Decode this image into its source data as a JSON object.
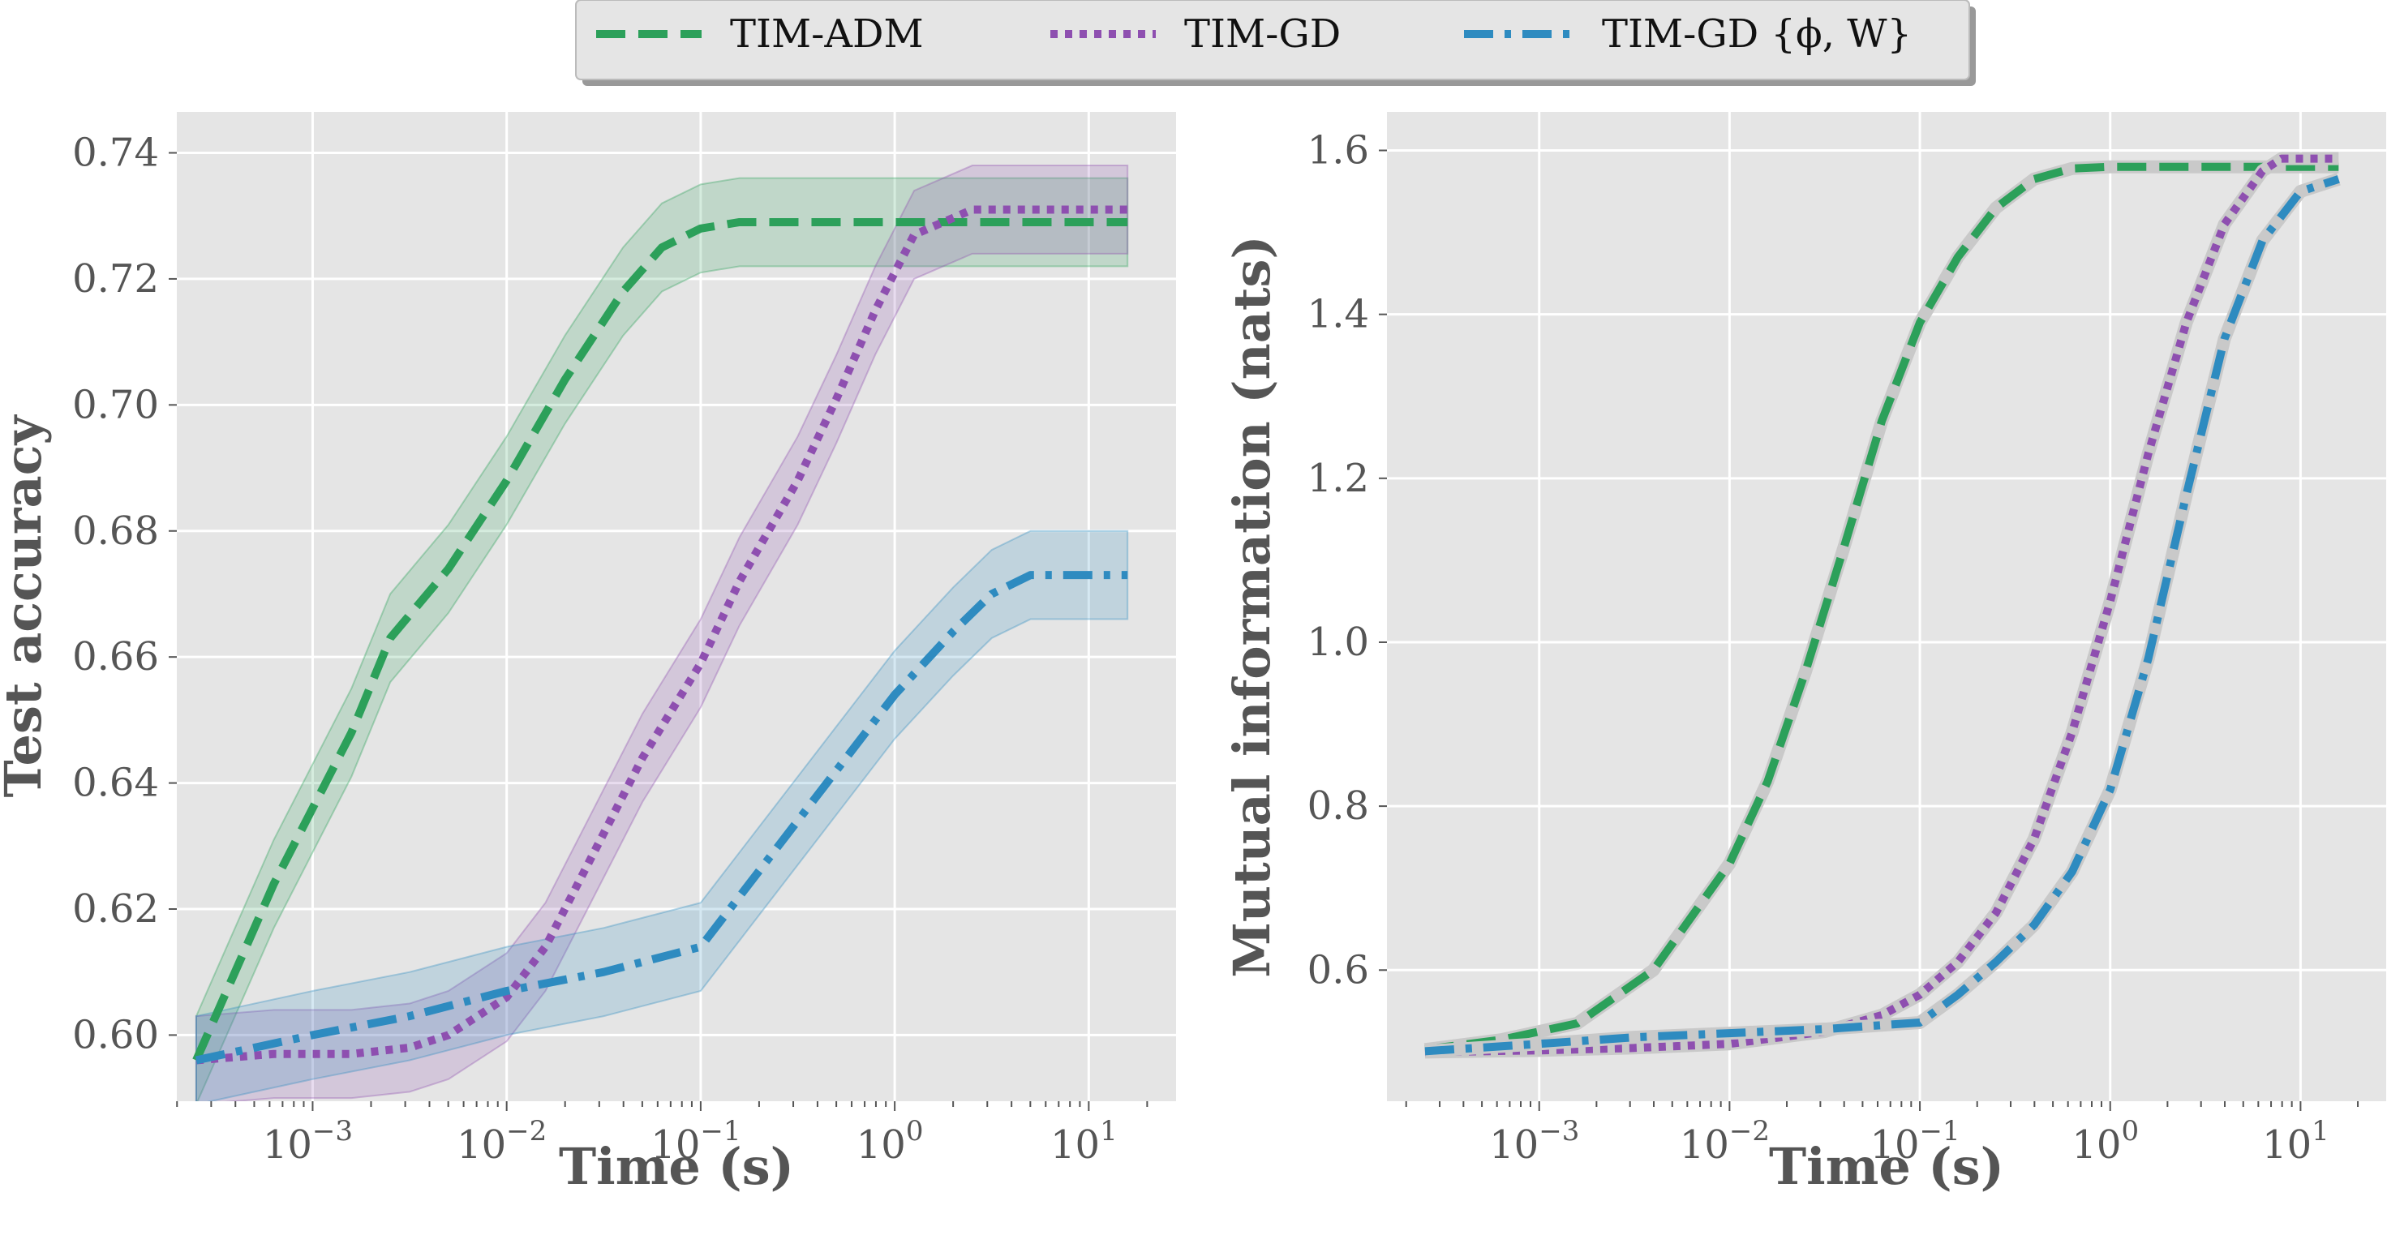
{
  "legend": {
    "entries": [
      {
        "label": "TIM-ADM",
        "color": "#2ca05a",
        "style": "dashed"
      },
      {
        "label": "TIM-GD",
        "color": "#8e4fb0",
        "style": "dotted"
      },
      {
        "label": "TIM-GD {ϕ, W}",
        "color": "#2e8bc0",
        "style": "dashdot"
      }
    ]
  },
  "chart_data": [
    {
      "type": "line",
      "xlabel": "Time (s)",
      "ylabel": "Test accuracy",
      "xscale": "log",
      "xlim_log10": [
        -3.7,
        1.45
      ],
      "ylim": [
        0.5895,
        0.7465
      ],
      "yticks": [
        "0.60",
        "0.62",
        "0.64",
        "0.66",
        "0.68",
        "0.70",
        "0.72",
        "0.74"
      ],
      "ytick_values": [
        0.6,
        0.62,
        0.64,
        0.66,
        0.68,
        0.7,
        0.72,
        0.74
      ],
      "xtick_exponents": [
        "-3",
        "-2",
        "-1",
        "0",
        "1"
      ],
      "grid": true,
      "series": [
        {
          "name": "TIM-ADM",
          "color": "#2ca05a",
          "style": "dashed",
          "log10_x": [
            -3.6,
            -3.2,
            -2.8,
            -2.6,
            -2.3,
            -2.0,
            -1.7,
            -1.4,
            -1.2,
            -1.0,
            -0.8,
            -0.5,
            0.0,
            0.5,
            1.2
          ],
          "y": [
            0.596,
            0.624,
            0.648,
            0.663,
            0.674,
            0.688,
            0.704,
            0.718,
            0.725,
            0.728,
            0.729,
            0.729,
            0.729,
            0.729,
            0.729
          ],
          "band": 0.007
        },
        {
          "name": "TIM-GD",
          "color": "#8e4fb0",
          "style": "dotted",
          "log10_x": [
            -3.6,
            -3.2,
            -2.8,
            -2.5,
            -2.3,
            -2.0,
            -1.8,
            -1.5,
            -1.3,
            -1.0,
            -0.8,
            -0.5,
            -0.3,
            -0.1,
            0.1,
            0.4,
            0.8,
            1.2
          ],
          "y": [
            0.596,
            0.597,
            0.597,
            0.598,
            0.6,
            0.606,
            0.614,
            0.632,
            0.644,
            0.659,
            0.672,
            0.688,
            0.701,
            0.715,
            0.727,
            0.731,
            0.731,
            0.731
          ],
          "band": 0.007
        },
        {
          "name": "TIM-GD {ϕ, W}",
          "color": "#2e8bc0",
          "style": "dashdot",
          "log10_x": [
            -3.6,
            -3.0,
            -2.5,
            -2.0,
            -1.5,
            -1.0,
            -0.8,
            -0.5,
            -0.3,
            0.0,
            0.3,
            0.5,
            0.7,
            1.0,
            1.2
          ],
          "y": [
            0.596,
            0.6,
            0.603,
            0.607,
            0.61,
            0.614,
            0.622,
            0.634,
            0.642,
            0.654,
            0.664,
            0.67,
            0.673,
            0.673,
            0.673
          ],
          "band": 0.007
        }
      ]
    },
    {
      "type": "line",
      "xlabel": "Time (s)",
      "ylabel": "Mutual information (nats)",
      "xscale": "log",
      "xlim_log10": [
        -3.8,
        1.45
      ],
      "ylim": [
        0.44,
        1.647
      ],
      "yticks": [
        "0.6",
        "0.8",
        "1.0",
        "1.2",
        "1.4",
        "1.6"
      ],
      "ytick_values": [
        0.6,
        0.8,
        1.0,
        1.2,
        1.4,
        1.6
      ],
      "xtick_exponents": [
        "-3",
        "-2",
        "-1",
        "0",
        "1"
      ],
      "grid": true,
      "series": [
        {
          "name": "TIM-ADM",
          "color": "#2ca05a",
          "style": "dashed",
          "log10_x": [
            -3.6,
            -3.2,
            -2.8,
            -2.4,
            -2.0,
            -1.8,
            -1.6,
            -1.4,
            -1.2,
            -1.0,
            -0.8,
            -0.6,
            -0.4,
            -0.2,
            0.0,
            0.5,
            1.2
          ],
          "y": [
            0.503,
            0.515,
            0.535,
            0.6,
            0.73,
            0.83,
            0.965,
            1.115,
            1.27,
            1.39,
            1.47,
            1.53,
            1.565,
            1.578,
            1.58,
            1.58,
            1.58
          ]
        },
        {
          "name": "TIM-GD",
          "color": "#8e4fb0",
          "style": "dotted",
          "log10_x": [
            -3.6,
            -3.0,
            -2.5,
            -2.0,
            -1.5,
            -1.2,
            -1.0,
            -0.8,
            -0.6,
            -0.4,
            -0.2,
            0.0,
            0.2,
            0.4,
            0.6,
            0.8,
            0.9,
            1.2
          ],
          "y": [
            0.5,
            0.502,
            0.505,
            0.51,
            0.525,
            0.545,
            0.57,
            0.61,
            0.67,
            0.76,
            0.89,
            1.05,
            1.23,
            1.39,
            1.51,
            1.575,
            1.59,
            1.59
          ]
        },
        {
          "name": "TIM-GD {ϕ, W}",
          "color": "#2e8bc0",
          "style": "dashdot",
          "log10_x": [
            -3.6,
            -3.0,
            -2.5,
            -2.0,
            -1.5,
            -1.0,
            -0.8,
            -0.6,
            -0.4,
            -0.2,
            0.0,
            0.2,
            0.4,
            0.6,
            0.8,
            1.0,
            1.2
          ],
          "y": [
            0.501,
            0.51,
            0.518,
            0.523,
            0.528,
            0.536,
            0.57,
            0.61,
            0.655,
            0.72,
            0.82,
            0.98,
            1.18,
            1.37,
            1.49,
            1.55,
            1.565
          ]
        }
      ]
    }
  ]
}
